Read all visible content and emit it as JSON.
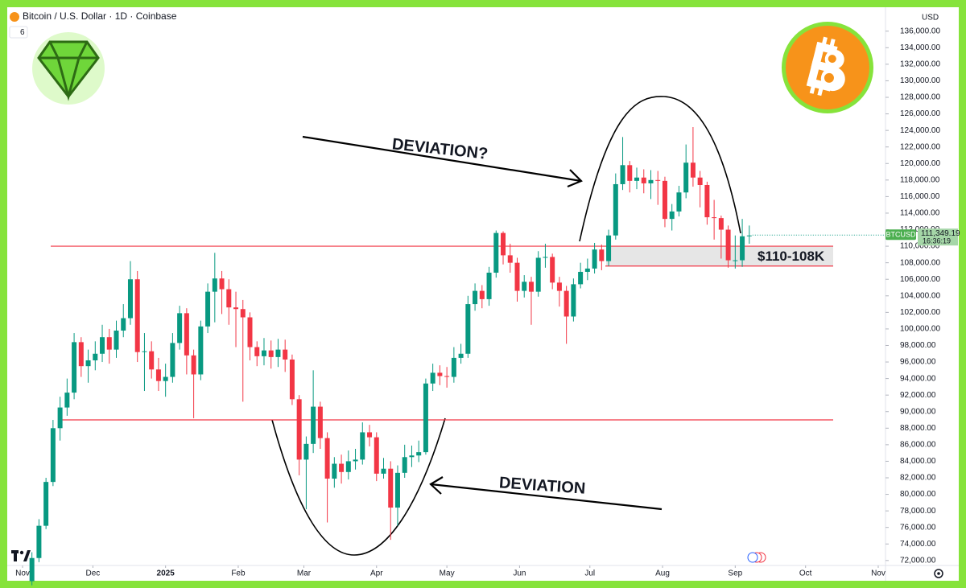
{
  "chart_data": {
    "type": "candlestick",
    "title": "Bitcoin / U.S. Dollar · 1D · Coinbase",
    "indicator_count": "6",
    "currency": "USD",
    "symbol": "BTCUSD",
    "last_price": {
      "value": 111349.19,
      "label": "111,349.19"
    },
    "countdown": "16:36:19",
    "annotations": [
      "DEVIATION?",
      "DEVIATION",
      "$110-108K"
    ],
    "up_color": "#089981",
    "down_color": "#f23645",
    "level_color": "#f23645",
    "levels": [
      110000,
      107600,
      89000
    ],
    "xlim": [
      -5.5,
      368.1
    ],
    "ylim": [
      71400,
      138600
    ],
    "xticks": [
      {
        "value": 0,
        "label": "Nov"
      },
      {
        "value": 30,
        "label": "Dec"
      },
      {
        "value": 61,
        "label": "2025"
      },
      {
        "value": 92,
        "label": "Feb"
      },
      {
        "value": 120,
        "label": "Mar"
      },
      {
        "value": 151,
        "label": "Apr"
      },
      {
        "value": 181,
        "label": "May"
      },
      {
        "value": 212,
        "label": "Jun"
      },
      {
        "value": 242,
        "label": "Jul"
      },
      {
        "value": 273,
        "label": "Aug"
      },
      {
        "value": 304,
        "label": "Sep"
      },
      {
        "value": 334,
        "label": "Oct"
      },
      {
        "value": 365,
        "label": "Nov"
      }
    ],
    "yticks": [
      {
        "value": 72000,
        "label": "72,000.00"
      },
      {
        "value": 74000,
        "label": "74,000.00"
      },
      {
        "value": 76000,
        "label": "76,000.00"
      },
      {
        "value": 78000,
        "label": "78,000.00"
      },
      {
        "value": 80000,
        "label": "80,000.00"
      },
      {
        "value": 82000,
        "label": "82,000.00"
      },
      {
        "value": 84000,
        "label": "84,000.00"
      },
      {
        "value": 86000,
        "label": "86,000.00"
      },
      {
        "value": 88000,
        "label": "88,000.00"
      },
      {
        "value": 90000,
        "label": "90,000.00"
      },
      {
        "value": 92000,
        "label": "92,000.00"
      },
      {
        "value": 94000,
        "label": "94,000.00"
      },
      {
        "value": 96000,
        "label": "96,000.00"
      },
      {
        "value": 98000,
        "label": "98,000.00"
      },
      {
        "value": 100000,
        "label": "100,000.00"
      },
      {
        "value": 102000,
        "label": "102,000.00"
      },
      {
        "value": 104000,
        "label": "104,000.00"
      },
      {
        "value": 106000,
        "label": "106,000.00"
      },
      {
        "value": 108000,
        "label": "108,000.00"
      },
      {
        "value": 110000,
        "label": "110,000.00"
      },
      {
        "value": 112000,
        "label": "112,000.00"
      },
      {
        "value": 114000,
        "label": "114,000.00"
      },
      {
        "value": 116000,
        "label": "116,000.00"
      },
      {
        "value": 118000,
        "label": "118,000.00"
      },
      {
        "value": 120000,
        "label": "120,000.00"
      },
      {
        "value": 122000,
        "label": "122,000.00"
      },
      {
        "value": 124000,
        "label": "124,000.00"
      },
      {
        "value": 126000,
        "label": "126,000.00"
      },
      {
        "value": 128000,
        "label": "128,000.00"
      },
      {
        "value": 130000,
        "label": "130,000.00"
      },
      {
        "value": 132000,
        "label": "132,000.00"
      },
      {
        "value": 134000,
        "label": "134,000.00"
      },
      {
        "value": 136000,
        "label": "136,000.00"
      }
    ],
    "x": [
      4,
      7,
      10,
      13,
      16,
      19,
      22,
      25,
      28,
      31,
      34,
      37,
      40,
      43,
      46,
      49,
      52,
      55,
      58,
      61,
      64,
      67,
      70,
      73,
      76,
      79,
      82,
      85,
      88,
      91,
      94,
      97,
      100,
      103,
      106,
      109,
      112,
      115,
      118,
      121,
      124,
      127,
      130,
      133,
      136,
      139,
      142,
      145,
      148,
      151,
      154,
      157,
      160,
      163,
      166,
      169,
      172,
      175,
      178,
      181,
      184,
      187,
      190,
      193,
      196,
      199,
      202,
      205,
      208,
      211,
      214,
      217,
      220,
      223,
      226,
      229,
      232,
      235,
      238,
      241,
      244,
      247,
      250,
      253,
      256,
      259,
      262,
      265,
      268,
      271,
      274,
      277,
      280,
      283,
      286,
      289,
      292,
      295,
      298,
      301,
      304,
      307,
      310
    ],
    "open": [
      69500,
      72300,
      76200,
      81500,
      88000,
      90500,
      92300,
      98400,
      95500,
      96200,
      97000,
      99000,
      97500,
      99800,
      101300,
      106000,
      97200,
      97300,
      95100,
      93700,
      94200,
      98300,
      101900,
      96800,
      94500,
      100300,
      104500,
      106100,
      104800,
      102600,
      102400,
      101400,
      97800,
      96700,
      97400,
      96600,
      97500,
      96300,
      91500,
      84200,
      86100,
      90600,
      86800,
      81900,
      83700,
      82700,
      84000,
      84200,
      87500,
      86900,
      82500,
      83100,
      78400,
      82600,
      84500,
      84700,
      85100,
      93400,
      94700,
      94300,
      94200,
      96500,
      97000,
      103000,
      104600,
      103600,
      106800,
      111600,
      108900,
      108000,
      104600,
      105700,
      104500,
      108600,
      108700,
      105600,
      104600,
      101500,
      105400,
      106900,
      107300,
      109600,
      108200,
      111300,
      117500,
      119800,
      117900,
      118300,
      117600,
      118000,
      117900,
      113300,
      114200,
      116500,
      120100,
      118300,
      117400,
      113500,
      113400,
      112000,
      108300,
      108300,
      111200
    ],
    "high": [
      73000,
      77000,
      82000,
      89000,
      91800,
      94000,
      99500,
      99000,
      97500,
      98500,
      100500,
      100000,
      101000,
      103000,
      108200,
      107000,
      99500,
      98500,
      96500,
      95800,
      99500,
      102800,
      102500,
      97500,
      101000,
      105500,
      109200,
      107000,
      106000,
      104500,
      103500,
      102000,
      98500,
      98900,
      98600,
      98800,
      98700,
      96900,
      92000,
      87000,
      95000,
      91200,
      87500,
      84500,
      84800,
      85300,
      85500,
      88700,
      88400,
      87500,
      84400,
      84000,
      83500,
      86000,
      85900,
      86500,
      94000,
      95800,
      95600,
      95400,
      97800,
      98200,
      104000,
      105500,
      105300,
      107500,
      111900,
      111800,
      110300,
      108600,
      106500,
      106300,
      109400,
      110300,
      109100,
      106300,
      105200,
      106100,
      108000,
      108500,
      110400,
      110200,
      112000,
      118800,
      123200,
      120300,
      119500,
      119300,
      119200,
      119100,
      118400,
      115100,
      117300,
      122300,
      124400,
      119100,
      117800,
      115600,
      113700,
      112500,
      111300,
      113300,
      112500
    ],
    "low": [
      69000,
      71800,
      75800,
      81000,
      86500,
      89500,
      91500,
      94200,
      93500,
      95000,
      96000,
      95800,
      96500,
      99000,
      100500,
      96000,
      92500,
      94000,
      92500,
      91800,
      93500,
      97500,
      94500,
      89200,
      93800,
      99500,
      100800,
      101800,
      100500,
      97800,
      91200,
      96200,
      95500,
      95600,
      95200,
      95400,
      94800,
      90800,
      82300,
      78200,
      85000,
      85500,
      76600,
      80800,
      81300,
      81800,
      83000,
      83600,
      85800,
      81600,
      81900,
      74500,
      76200,
      82000,
      83300,
      83900,
      84800,
      92500,
      93200,
      92900,
      93500,
      95800,
      96500,
      102200,
      102500,
      102800,
      106200,
      107800,
      106800,
      103300,
      103800,
      100500,
      103900,
      107400,
      104800,
      102700,
      98200,
      100900,
      104900,
      105900,
      106700,
      107100,
      107600,
      110800,
      116800,
      116500,
      116900,
      116400,
      115700,
      115000,
      112300,
      111900,
      113600,
      115800,
      117200,
      114700,
      112600,
      110800,
      108500,
      107400,
      107300,
      107500,
      110300
    ],
    "close": [
      72300,
      76200,
      81500,
      88000,
      90500,
      92300,
      98400,
      95500,
      96200,
      97000,
      99000,
      97500,
      99800,
      101300,
      106000,
      97200,
      97300,
      95100,
      93700,
      94200,
      98300,
      101900,
      96800,
      94500,
      100300,
      104500,
      106100,
      104800,
      102600,
      102400,
      101400,
      97800,
      96700,
      97400,
      96600,
      97500,
      96300,
      91500,
      84200,
      86100,
      90600,
      86800,
      81900,
      83700,
      82700,
      84000,
      84200,
      87500,
      86900,
      82500,
      83100,
      78400,
      82600,
      84500,
      84700,
      85100,
      93400,
      94700,
      94300,
      94200,
      96500,
      97000,
      103000,
      104600,
      103600,
      106800,
      111600,
      108900,
      108000,
      104600,
      105700,
      104500,
      108600,
      108700,
      105600,
      104600,
      101500,
      105400,
      106900,
      107300,
      109600,
      108200,
      111300,
      117500,
      119800,
      117900,
      118300,
      117600,
      118000,
      117900,
      113300,
      114200,
      116500,
      120100,
      118300,
      117400,
      113500,
      113400,
      112000,
      108300,
      108300,
      111200,
      111300
    ]
  }
}
